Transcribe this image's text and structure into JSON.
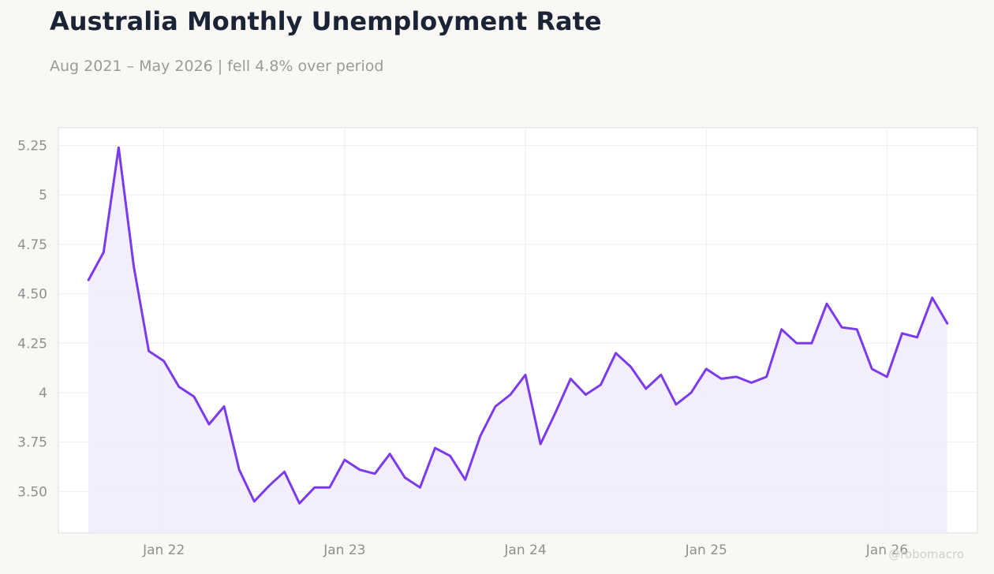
{
  "header": {
    "title": "Australia Monthly Unemployment Rate",
    "subtitle": "Aug 2021 – May 2026 | fell 4.8% over period"
  },
  "watermark": "@robomacro",
  "colors": {
    "line": "#7c3aed",
    "fill": "#f1ecfc",
    "background": "#f9f8f5",
    "plot_background": "#ffffff",
    "grid": "#eeeeee"
  },
  "chart_data": {
    "type": "area",
    "title": "Australia Monthly Unemployment Rate",
    "subtitle": "Aug 2021 – May 2026 | fell 4.8% over period",
    "xlabel": "",
    "ylabel": "",
    "grid": true,
    "legend": "none",
    "x_start": "Aug 2021",
    "x_end": "May 2026",
    "xlim": [
      "2021-06",
      "2026-07"
    ],
    "ylim": [
      3.29,
      5.34
    ],
    "x_ticks": [
      {
        "date": "2022-01",
        "label": "Jan 22"
      },
      {
        "date": "2023-01",
        "label": "Jan 23"
      },
      {
        "date": "2024-01",
        "label": "Jan 24"
      },
      {
        "date": "2025-01",
        "label": "Jan 25"
      },
      {
        "date": "2026-01",
        "label": "Jan 26"
      }
    ],
    "y_ticks": [
      {
        "value": 3.5,
        "label": "3.50"
      },
      {
        "value": 3.75,
        "label": "3.75"
      },
      {
        "value": 4.0,
        "label": "4"
      },
      {
        "value": 4.25,
        "label": "4.25"
      },
      {
        "value": 4.5,
        "label": "4.50"
      },
      {
        "value": 4.75,
        "label": "4.75"
      },
      {
        "value": 5.0,
        "label": "5"
      },
      {
        "value": 5.25,
        "label": "5.25"
      }
    ],
    "series": [
      {
        "x": [
          "2021-08",
          "2021-09",
          "2021-10",
          "2021-11",
          "2021-12",
          "2022-01",
          "2022-02",
          "2022-03",
          "2022-04",
          "2022-05",
          "2022-06",
          "2022-07",
          "2022-08",
          "2022-09",
          "2022-10",
          "2022-11",
          "2022-12",
          "2023-01",
          "2023-02",
          "2023-03",
          "2023-04",
          "2023-05",
          "2023-06",
          "2023-07",
          "2023-08",
          "2023-09",
          "2023-10",
          "2023-11",
          "2023-12",
          "2024-01",
          "2024-02",
          "2024-03",
          "2024-04",
          "2024-05",
          "2024-06",
          "2024-07",
          "2024-08",
          "2024-09",
          "2024-10",
          "2024-11",
          "2024-12",
          "2025-01",
          "2025-02",
          "2025-03",
          "2025-04",
          "2025-05",
          "2025-06",
          "2025-07",
          "2025-08",
          "2025-09",
          "2025-10",
          "2025-11",
          "2025-12",
          "2026-01",
          "2026-02",
          "2026-03",
          "2026-04",
          "2026-05"
        ],
        "values": [
          4.57,
          4.71,
          5.24,
          4.64,
          4.21,
          4.16,
          4.03,
          3.98,
          3.84,
          3.93,
          3.61,
          3.45,
          3.53,
          3.6,
          3.44,
          3.52,
          3.52,
          3.66,
          3.61,
          3.59,
          3.69,
          3.57,
          3.52,
          3.72,
          3.68,
          3.56,
          3.78,
          3.93,
          3.99,
          4.09,
          3.74,
          3.9,
          4.07,
          3.99,
          4.04,
          4.2,
          4.13,
          4.02,
          4.09,
          3.94,
          4.0,
          4.12,
          4.07,
          4.08,
          4.05,
          4.08,
          4.32,
          4.25,
          4.25,
          4.45,
          4.33,
          4.32,
          4.12,
          4.08,
          4.3,
          4.28,
          4.48,
          4.35
        ]
      }
    ]
  }
}
